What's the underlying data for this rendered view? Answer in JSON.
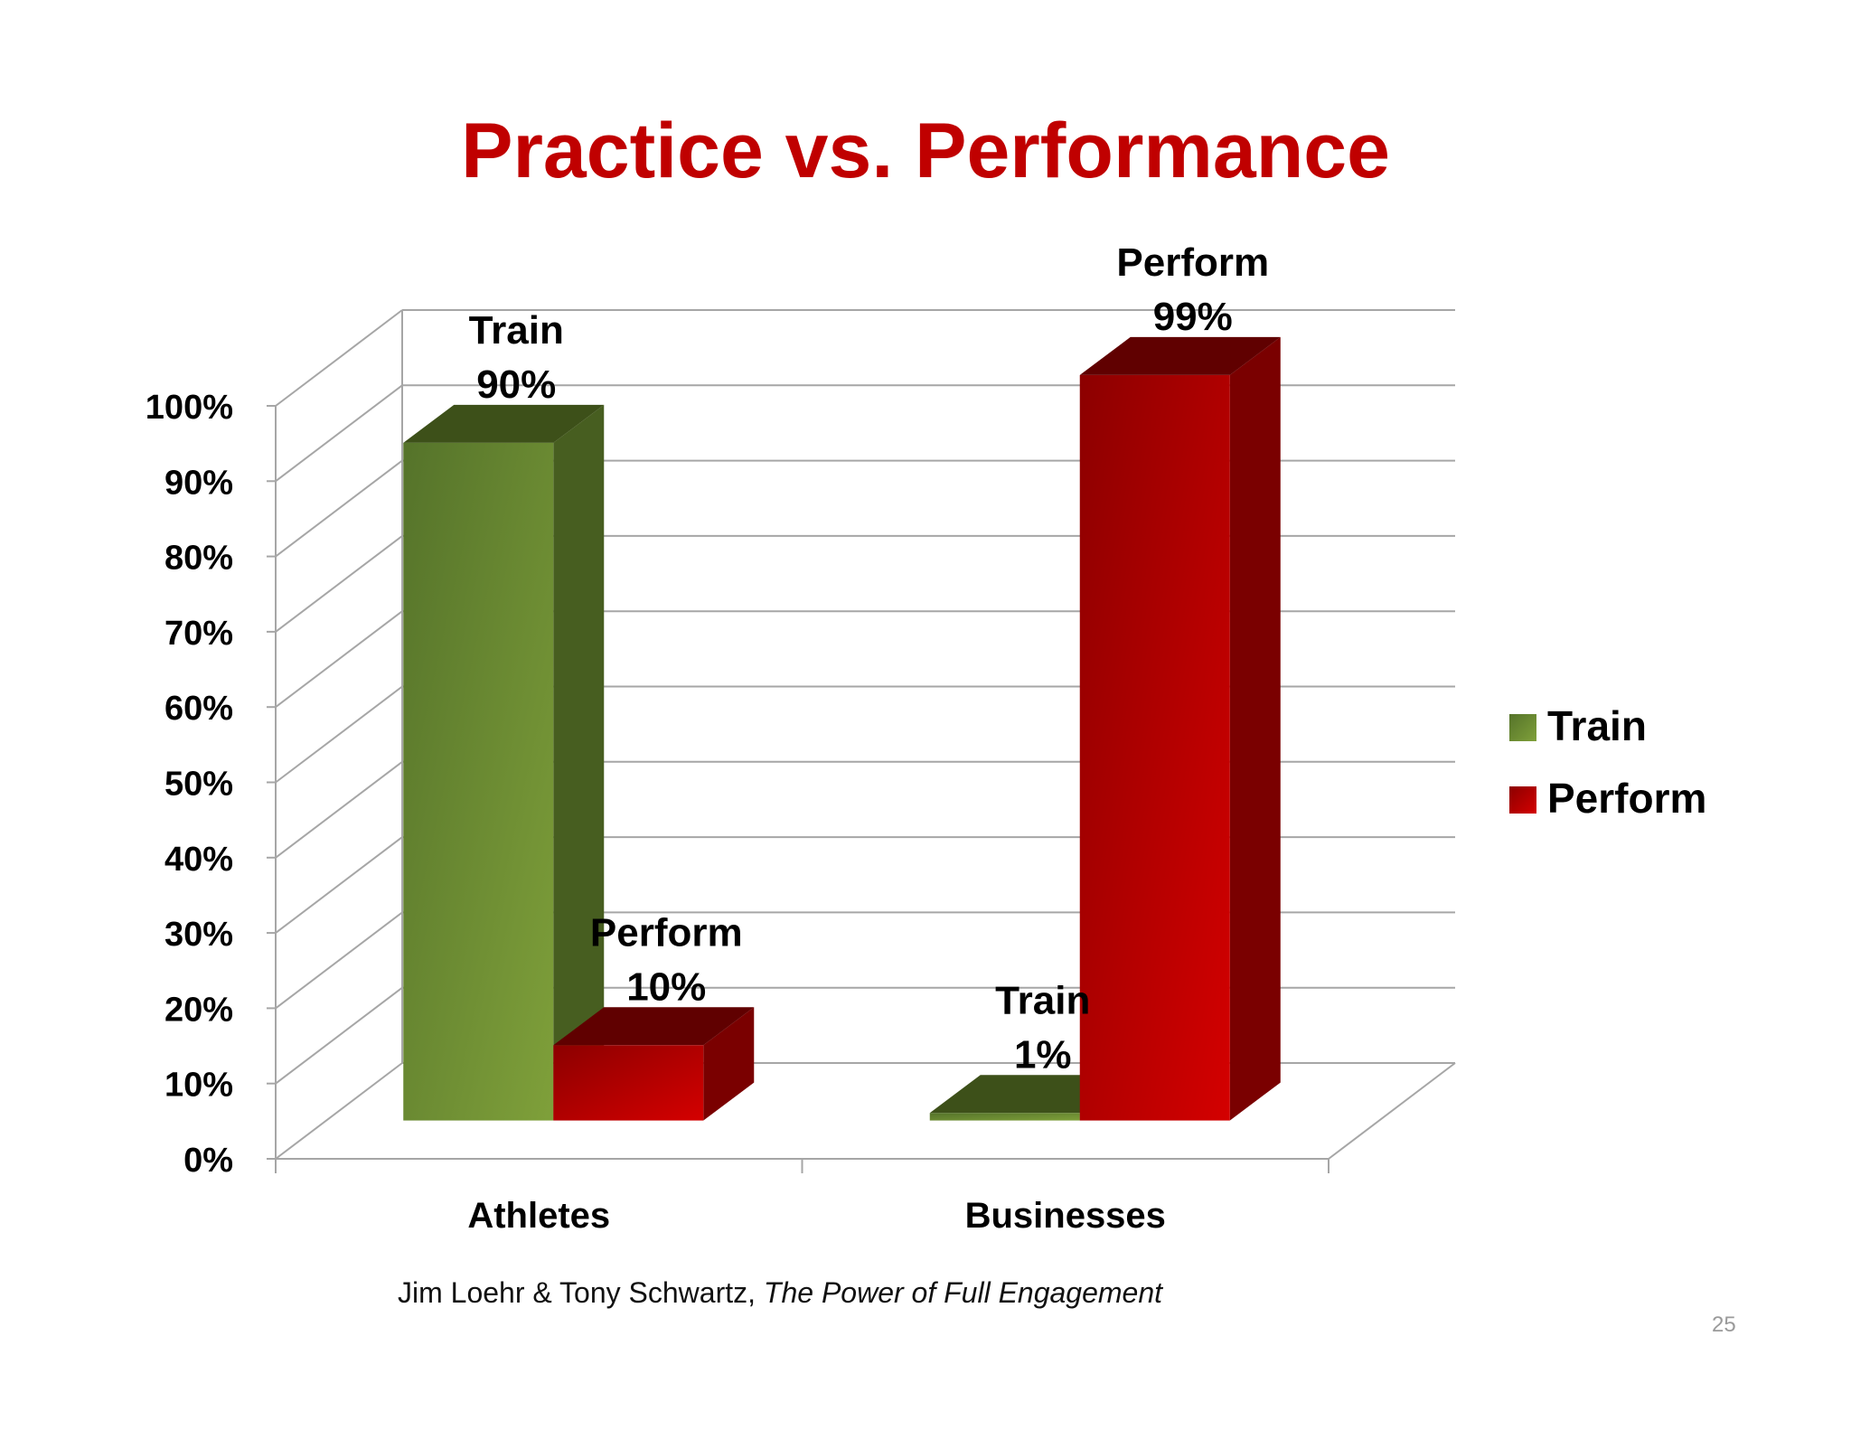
{
  "slide": {
    "title": "Practice vs. Performance",
    "citation_authors": "Jim Loehr & Tony Schwartz, ",
    "citation_book": "The Power of Full Engagement",
    "page_number": "25"
  },
  "chart_data": {
    "type": "bar",
    "style": "3d-clustered-column",
    "categories": [
      "Athletes",
      "Businesses"
    ],
    "series": [
      {
        "name": "Train",
        "values": [
          90,
          1
        ],
        "color": "#6b8e2e"
      },
      {
        "name": "Perform",
        "values": [
          10,
          99
        ],
        "color": "#c00000"
      }
    ],
    "data_labels": [
      [
        "Train",
        "90%",
        "Perform",
        "10%"
      ],
      [
        "Train",
        "1%",
        "Perform",
        "99%"
      ]
    ],
    "y_ticks": [
      "0%",
      "10%",
      "20%",
      "30%",
      "40%",
      "50%",
      "60%",
      "70%",
      "80%",
      "90%",
      "100%"
    ],
    "ylim": [
      0,
      100
    ],
    "grid": true,
    "legend": "right",
    "colors": {
      "train_front": "#6b8e2e",
      "train_side": "#475e20",
      "train_top": "#3d5019",
      "perform_front": "#c00000",
      "perform_side": "#7a0000",
      "perform_top": "#600000",
      "grid": "#a6a6a6",
      "title": "#c00000"
    }
  }
}
